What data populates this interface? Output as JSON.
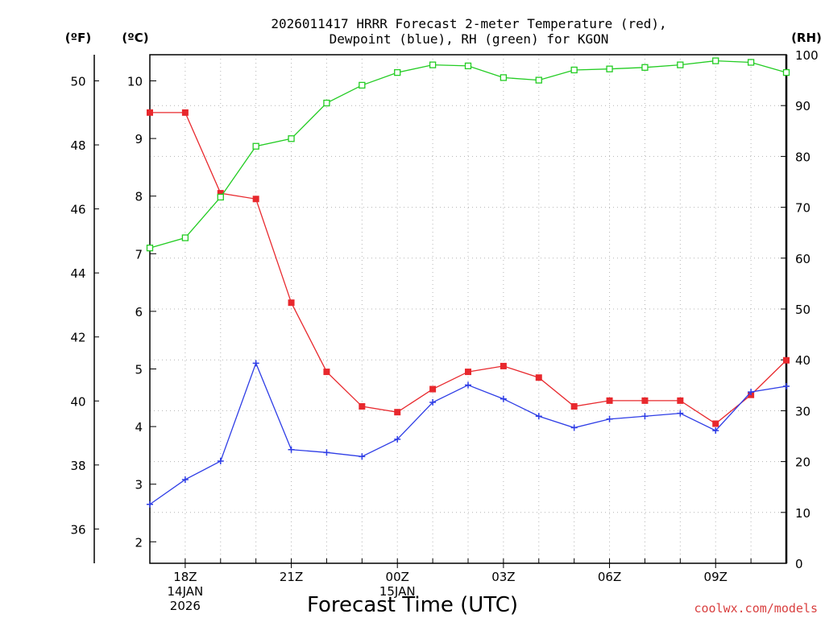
{
  "chart_data": {
    "type": "line",
    "title": [
      "2026011417 HRRR Forecast 2-meter Temperature (red),",
      "Dewpoint (blue), RH (green) for KGON"
    ],
    "xlabel": "Forecast Time (UTC)",
    "credit": "coolwx.com/models",
    "units": {
      "fahrenheit": "(ºF)",
      "celsius": "(ºC)",
      "rh": "(RH)"
    },
    "x": [
      "17Z",
      "18Z",
      "19Z",
      "20Z",
      "21Z",
      "22Z",
      "23Z",
      "00Z",
      "01Z",
      "02Z",
      "03Z",
      "04Z",
      "05Z",
      "06Z",
      "07Z",
      "08Z",
      "09Z",
      "10Z",
      "11Z"
    ],
    "x_tick_labels": [
      {
        "x": "18Z",
        "lines": [
          "18Z",
          "14JAN",
          "2026"
        ]
      },
      {
        "x": "21Z",
        "lines": [
          "21Z"
        ]
      },
      {
        "x": "00Z",
        "lines": [
          "00Z",
          "15JAN"
        ]
      },
      {
        "x": "03Z",
        "lines": [
          "03Z"
        ]
      },
      {
        "x": "06Z",
        "lines": [
          "06Z"
        ]
      },
      {
        "x": "09Z",
        "lines": [
          "09Z"
        ]
      }
    ],
    "celsius_axis": {
      "range": [
        1.6,
        10.45
      ],
      "ticks": [
        2,
        3,
        4,
        5,
        6,
        7,
        8,
        9,
        10
      ]
    },
    "fahrenheit_axis": {
      "ticks": [
        36,
        38,
        40,
        42,
        44,
        46,
        48,
        50
      ]
    },
    "rh_axis": {
      "range": [
        0,
        100
      ],
      "ticks": [
        0,
        10,
        20,
        30,
        40,
        50,
        60,
        70,
        80,
        90,
        100
      ]
    },
    "series": [
      {
        "name": "Temperature",
        "axis": "celsius",
        "color": "#e8282d",
        "marker": "filled-square",
        "values": [
          9.45,
          9.45,
          8.05,
          7.95,
          6.15,
          4.95,
          4.35,
          4.25,
          4.65,
          4.95,
          5.05,
          4.85,
          4.35,
          4.45,
          4.45,
          4.45,
          4.05,
          4.55,
          5.15
        ]
      },
      {
        "name": "Dewpoint",
        "axis": "celsius",
        "color": "#2e3de6",
        "marker": "plus",
        "values": [
          2.65,
          3.08,
          3.4,
          5.1,
          3.6,
          3.55,
          3.48,
          3.78,
          4.42,
          4.72,
          4.48,
          4.18,
          3.98,
          4.13,
          4.18,
          4.23,
          3.93,
          4.6,
          4.7
        ]
      },
      {
        "name": "RH",
        "axis": "rh",
        "color": "#22cc22",
        "marker": "open-square",
        "values": [
          62,
          64,
          72,
          82,
          83.5,
          90.5,
          94,
          96.5,
          98,
          97.8,
          95.5,
          95,
          97,
          97.2,
          97.5,
          98,
          98.8,
          98.5,
          96.5
        ]
      }
    ],
    "grid": true
  }
}
